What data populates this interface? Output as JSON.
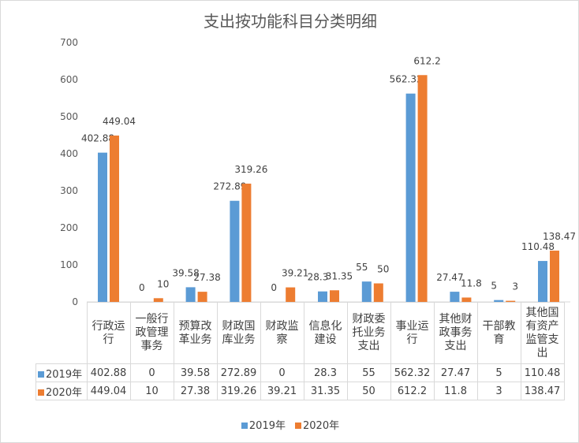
{
  "chart_data": {
    "type": "bar",
    "title": "支出按功能科目分类明细",
    "categories": [
      "行政运行",
      "一般行政管理事务",
      "预算改革业务",
      "财政国库业务",
      "财政监察",
      "信息化建设",
      "财政委托业务支出",
      "事业运行",
      "其他财政事务支出",
      "干部教育",
      "其他国有资产监管支出"
    ],
    "series": [
      {
        "name": "2019年",
        "color": "#5B9BD5",
        "values": [
          402.88,
          0,
          39.58,
          272.89,
          0,
          28.3,
          55,
          562.32,
          27.47,
          5,
          110.48
        ]
      },
      {
        "name": "2020年",
        "color": "#ED7D31",
        "values": [
          449.04,
          10,
          27.38,
          319.26,
          39.21,
          31.35,
          50,
          612.2,
          11.8,
          3,
          138.47
        ]
      }
    ],
    "ylim": [
      0,
      700
    ],
    "yticks": [
      0,
      100,
      200,
      300,
      400,
      500,
      600,
      700
    ],
    "grid": false,
    "legend": "bottom",
    "data_table": true
  }
}
